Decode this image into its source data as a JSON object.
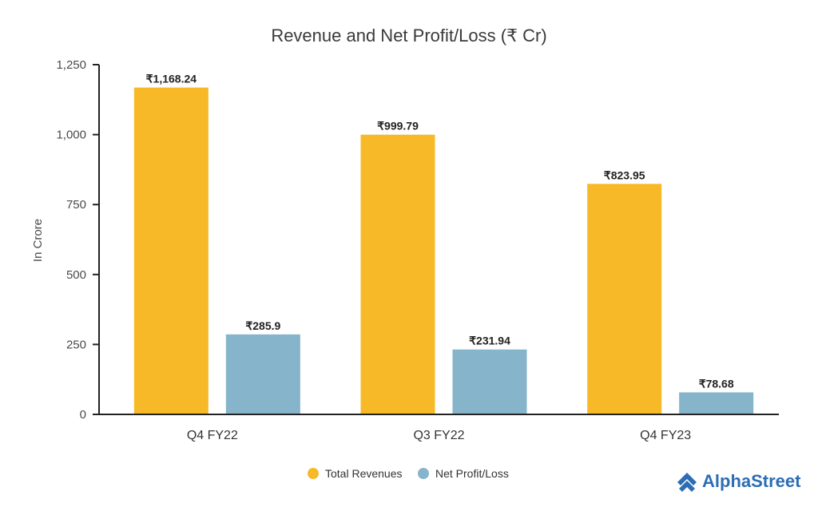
{
  "chart_data": {
    "type": "bar",
    "title": "Revenue and Net Profit/Loss (₹ Cr)",
    "xlabel": "",
    "ylabel": "In Crore",
    "ylim": [
      0,
      1250
    ],
    "yticks": [
      0,
      250,
      500,
      750,
      1000,
      1250
    ],
    "ytick_labels": [
      "0",
      "250",
      "500",
      "750",
      "1,000",
      "1,250"
    ],
    "categories": [
      "Q4 FY22",
      "Q3 FY22",
      "Q4 FY23"
    ],
    "series": [
      {
        "name": "Total Revenues",
        "color": "#F7B928",
        "values": [
          1168.24,
          999.79,
          823.95
        ],
        "labels": [
          "₹1,168.24",
          "₹999.79",
          "₹823.95"
        ]
      },
      {
        "name": "Net Profit/Loss",
        "color": "#86B4CA",
        "values": [
          285.9,
          231.94,
          78.68
        ],
        "labels": [
          "₹285.9",
          "₹231.94",
          "₹78.68"
        ]
      }
    ],
    "legend_position": "bottom-center",
    "grid": false
  },
  "brand": {
    "name": "AlphaStreet",
    "icon": "alphastreet-logo-icon",
    "color": "#2C6DB4"
  }
}
